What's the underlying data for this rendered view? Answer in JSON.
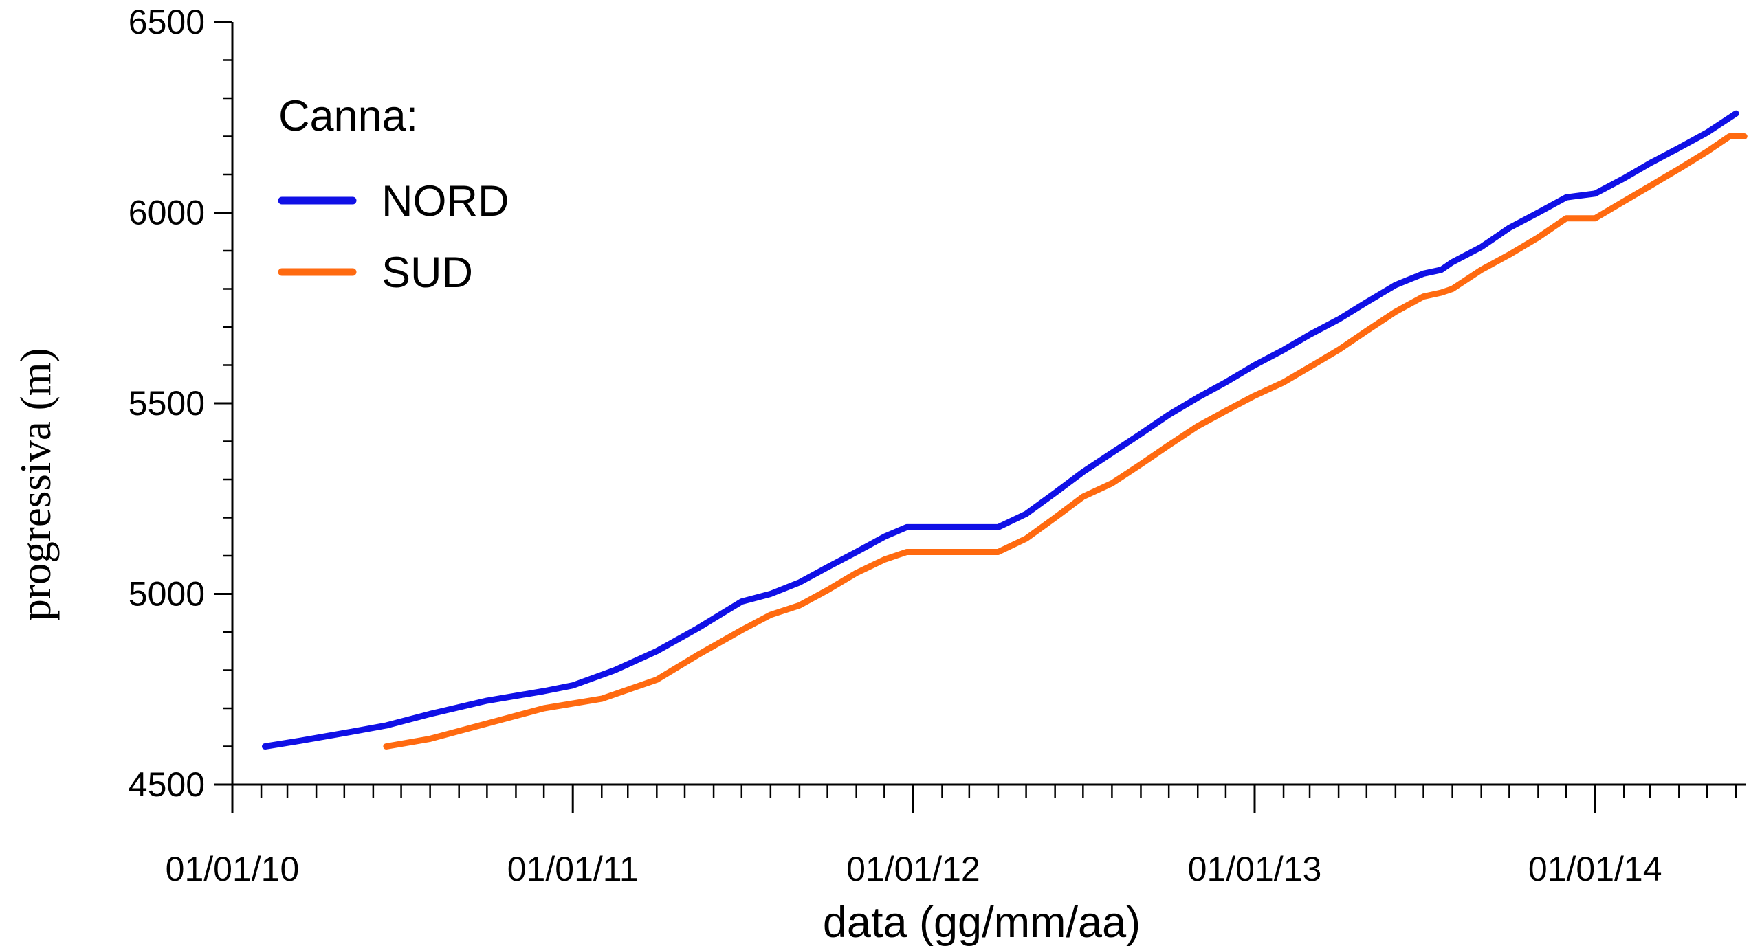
{
  "chart_data": {
    "type": "line",
    "title": "",
    "xlabel": "data (gg/mm/aa)",
    "ylabel": "progressiva (m)",
    "x_type": "date",
    "xlim": [
      "2010-01-01",
      "2014-06-12"
    ],
    "ylim": [
      4500,
      6500
    ],
    "yticks": [
      4500,
      5000,
      5500,
      6000,
      6500
    ],
    "ytick_labels": [
      "4500",
      "5000",
      "5500",
      "6000",
      "6500"
    ],
    "xticks": [
      "2010-01-01",
      "2011-01-01",
      "2012-01-01",
      "2013-01-01",
      "2014-01-01"
    ],
    "xtick_labels": [
      "01/01/10",
      "01/01/11",
      "01/01/12",
      "01/01/13",
      "01/01/14"
    ],
    "grid": false,
    "legend": {
      "title": "Canna:",
      "placement": "top-left"
    },
    "series": [
      {
        "name": "NORD",
        "color": "#1010e6",
        "x": [
          "2010-02-05",
          "2010-03-15",
          "2010-05-01",
          "2010-06-15",
          "2010-08-01",
          "2010-10-01",
          "2010-12-01",
          "2011-01-01",
          "2011-02-15",
          "2011-04-01",
          "2011-05-15",
          "2011-07-01",
          "2011-08-01",
          "2011-09-01",
          "2011-10-01",
          "2011-11-01",
          "2011-12-01",
          "2011-12-25",
          "2012-01-15",
          "2012-04-01",
          "2012-05-01",
          "2012-06-01",
          "2012-07-01",
          "2012-08-01",
          "2012-09-01",
          "2012-10-01",
          "2012-11-01",
          "2012-12-01",
          "2013-01-01",
          "2013-02-01",
          "2013-03-01",
          "2013-04-01",
          "2013-05-01",
          "2013-06-01",
          "2013-07-01",
          "2013-07-20",
          "2013-08-01",
          "2013-09-01",
          "2013-10-01",
          "2013-11-01",
          "2013-12-01",
          "2014-01-01",
          "2014-02-01",
          "2014-03-01",
          "2014-04-01",
          "2014-05-01",
          "2014-06-01"
        ],
        "y": [
          4600,
          4615,
          4635,
          4655,
          4685,
          4720,
          4745,
          4760,
          4800,
          4850,
          4910,
          4980,
          5000,
          5030,
          5070,
          5110,
          5150,
          5175,
          5175,
          5175,
          5210,
          5265,
          5320,
          5370,
          5420,
          5470,
          5515,
          5555,
          5600,
          5640,
          5680,
          5720,
          5765,
          5810,
          5840,
          5850,
          5870,
          5910,
          5960,
          6000,
          6040,
          6050,
          6090,
          6130,
          6170,
          6210,
          6260
        ]
      },
      {
        "name": "SUD",
        "color": "#ff6a10",
        "x": [
          "2010-06-15",
          "2010-08-01",
          "2010-10-01",
          "2010-12-01",
          "2011-02-01",
          "2011-04-01",
          "2011-05-15",
          "2011-07-01",
          "2011-08-01",
          "2011-09-01",
          "2011-10-01",
          "2011-11-01",
          "2011-12-01",
          "2011-12-25",
          "2012-01-15",
          "2012-04-01",
          "2012-05-01",
          "2012-06-01",
          "2012-07-01",
          "2012-08-01",
          "2012-09-01",
          "2012-10-01",
          "2012-11-01",
          "2012-12-01",
          "2013-01-01",
          "2013-02-01",
          "2013-03-01",
          "2013-04-01",
          "2013-05-01",
          "2013-06-01",
          "2013-07-01",
          "2013-07-20",
          "2013-08-01",
          "2013-09-01",
          "2013-10-01",
          "2013-11-01",
          "2013-12-01",
          "2014-01-01",
          "2014-02-01",
          "2014-03-01",
          "2014-04-01",
          "2014-05-01",
          "2014-05-25",
          "2014-06-10"
        ],
        "y": [
          4600,
          4620,
          4660,
          4700,
          4725,
          4775,
          4840,
          4905,
          4945,
          4970,
          5010,
          5055,
          5090,
          5110,
          5110,
          5110,
          5145,
          5200,
          5255,
          5290,
          5340,
          5390,
          5440,
          5480,
          5520,
          5555,
          5595,
          5640,
          5690,
          5740,
          5780,
          5790,
          5800,
          5850,
          5890,
          5935,
          5985,
          5985,
          6030,
          6070,
          6115,
          6160,
          6200,
          6200
        ]
      }
    ]
  }
}
